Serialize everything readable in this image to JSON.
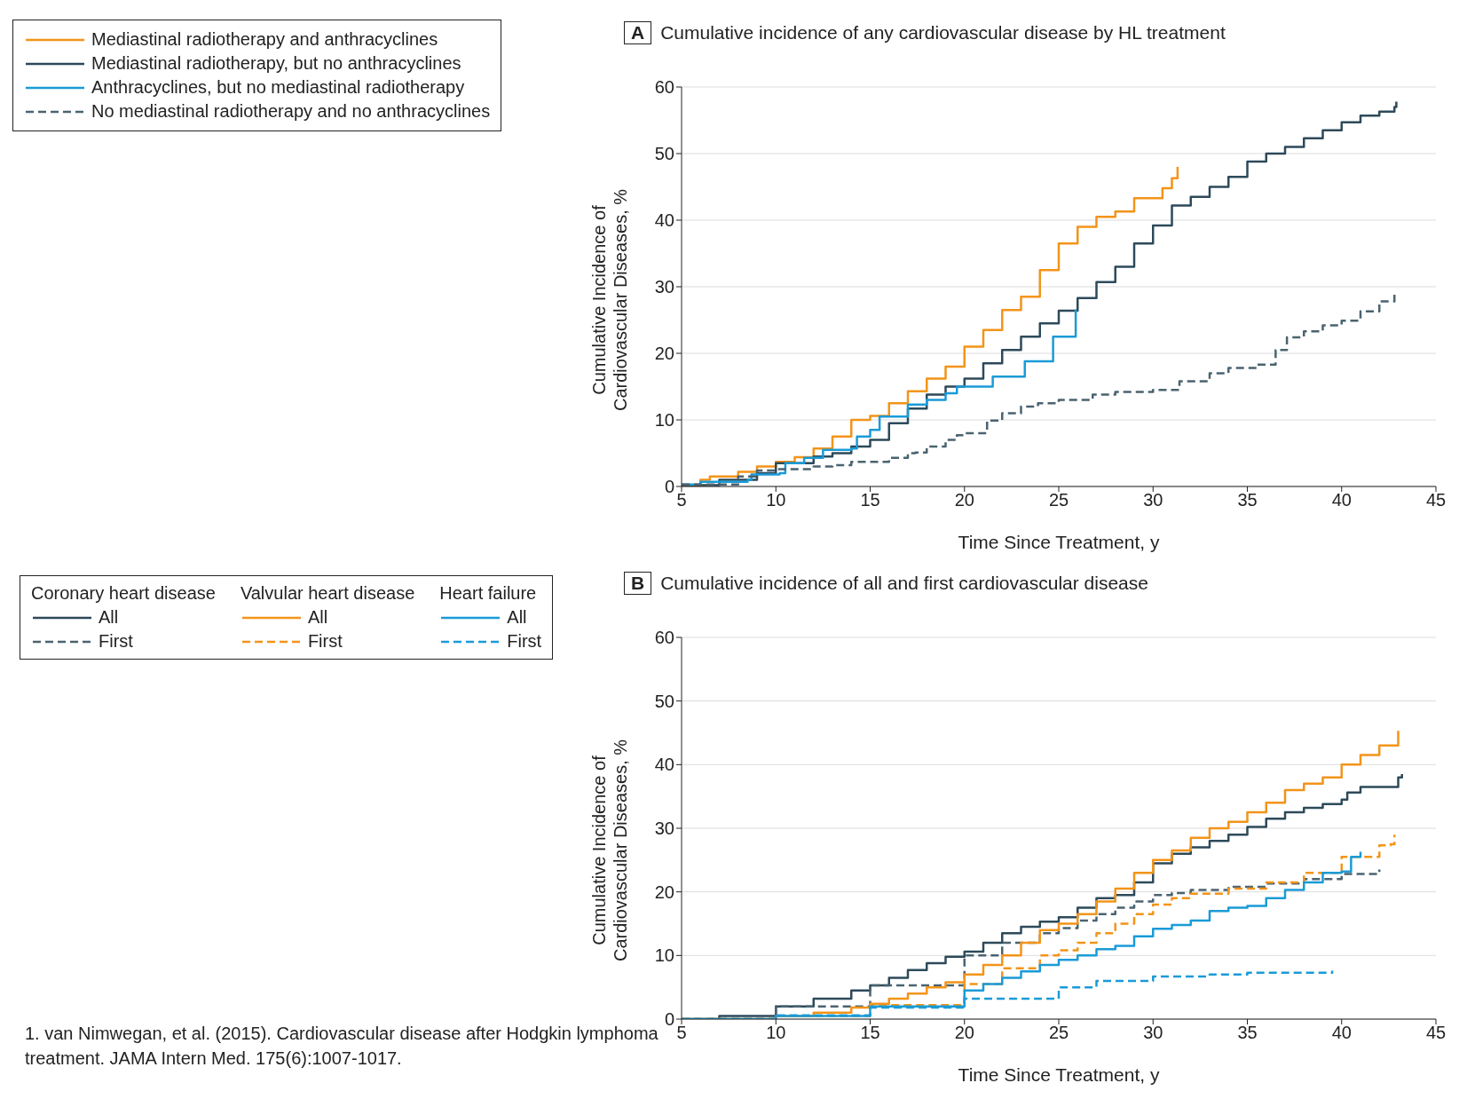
{
  "chart_data": [
    {
      "type": "step",
      "title": "Cumulative incidence of any cardiovascular disease by HL treatment",
      "xlabel": "Time Since Treatment, y",
      "ylabel": "Cumulative Incidence of Cardiovascular Diseases, %",
      "annotations": [
        "A"
      ],
      "xlim": [
        5,
        45
      ],
      "xticks": [
        5,
        10,
        15,
        20,
        25,
        30,
        35,
        40,
        45
      ],
      "ylim": [
        0,
        60
      ],
      "yticks": [
        0,
        10,
        20,
        30,
        40,
        50,
        60
      ],
      "grid": "y",
      "legend": "top left",
      "series": [
        {
          "name": "Mediastinal radiotherapy and anthracyclines",
          "color": "#f39419",
          "line_style": "solid",
          "x": [
            5,
            6,
            6.5,
            8,
            9,
            10,
            11,
            12,
            13,
            14,
            15,
            16,
            17,
            18,
            19,
            20,
            21,
            22,
            23,
            24,
            25,
            26,
            27,
            28,
            29,
            30,
            30.5,
            31,
            31.3
          ],
          "values": [
            0.2,
            1,
            1.5,
            2.2,
            3,
            3.7,
            4.4,
            5.7,
            7.5,
            10,
            10.6,
            12.5,
            14.3,
            16.2,
            18,
            21,
            23.5,
            26.5,
            28.5,
            32.5,
            36.5,
            39,
            40.5,
            41.3,
            43.3,
            43.3,
            44.8,
            46.3,
            48
          ]
        },
        {
          "name": "Mediastinal radiotherapy, but no anthracyclines",
          "color": "#2d4a5a",
          "line_style": "solid",
          "x": [
            5,
            7,
            9,
            10,
            12,
            13,
            14,
            15,
            16,
            17,
            18,
            19,
            20,
            21,
            22,
            23,
            24,
            25,
            26,
            27,
            28,
            29,
            30,
            31,
            32,
            33,
            34,
            35,
            36,
            37,
            38,
            39,
            40,
            41,
            42,
            42.8,
            42.9
          ],
          "values": [
            0.2,
            1,
            2,
            3.5,
            4.5,
            5,
            6,
            7,
            9.5,
            11.7,
            13.8,
            15,
            16.2,
            18.5,
            20.5,
            22.5,
            24.5,
            26.4,
            28.3,
            30.7,
            33,
            36.5,
            39.2,
            42.2,
            43.5,
            45,
            46.5,
            48.8,
            50,
            51,
            52.3,
            53.5,
            54.7,
            55.7,
            56.3,
            57,
            57.8
          ]
        },
        {
          "name": "Anthracyclines, but no mediastinal radiotherapy",
          "color": "#1a9bd7",
          "line_style": "solid",
          "x": [
            5,
            6,
            8.5,
            8.7,
            10.2,
            10.5,
            11.5,
            12.5,
            14,
            14.3,
            15,
            15.5,
            17,
            18,
            19,
            19.6,
            21.5,
            23.2,
            24.7,
            25.9
          ],
          "values": [
            0.3,
            0.7,
            1,
            1.8,
            2,
            3.5,
            4.3,
            5.5,
            5.7,
            7.5,
            8.5,
            10.5,
            12.3,
            13,
            14,
            15,
            16.5,
            18.8,
            22.5,
            26.6
          ]
        },
        {
          "name": "No mediastinal radiotherapy and no anthracyclines",
          "color": "#4a6370",
          "line_style": "dashed",
          "x": [
            5,
            8,
            9,
            10,
            12,
            13,
            14,
            16,
            17,
            17.4,
            18,
            19,
            19.6,
            20,
            21.2,
            22,
            23,
            23.9,
            25,
            26.8,
            28,
            30,
            31.4,
            33,
            34,
            35.5,
            36.5,
            37.1,
            38,
            39,
            40,
            41,
            42,
            42.8
          ],
          "values": [
            0.3,
            1.5,
            2.4,
            2.6,
            3,
            3.2,
            3.7,
            4.3,
            5,
            5.1,
            6,
            7,
            7.7,
            8,
            9.9,
            11,
            12,
            12.5,
            13,
            13.8,
            14.2,
            14.5,
            15.8,
            17,
            17.8,
            18.3,
            20.5,
            22.4,
            23.3,
            24.2,
            24.9,
            26.3,
            27.8,
            29.1
          ]
        }
      ]
    },
    {
      "type": "step",
      "title": "Cumulative incidence of all and first cardiovascular disease",
      "xlabel": "Time Since Treatment, y",
      "ylabel": "Cumulative Incidence of Cardiovascular Diseases, %",
      "annotations": [
        "B",
        "Coronary heart disease",
        "Valvular heart disease",
        "Heart failure",
        "1.    van Nimwegan, et al. (2015). Cardiovascular disease after Hodgkin lymphoma treatment. JAMA Intern Med. 175(6):1007-1017."
      ],
      "xlim": [
        5,
        45
      ],
      "xticks": [
        5,
        10,
        15,
        20,
        25,
        30,
        35,
        40,
        45
      ],
      "ylim": [
        0,
        60
      ],
      "yticks": [
        0,
        10,
        20,
        30,
        40,
        50,
        60
      ],
      "grid": "y",
      "legend": "top left",
      "series": [
        {
          "name": "All",
          "color": "#2d4a5a",
          "line_style": "solid",
          "x": [
            5,
            7,
            10,
            12,
            14,
            15,
            16,
            17,
            18,
            19,
            20,
            21,
            22,
            23,
            24,
            25,
            26,
            27,
            28,
            29,
            30,
            31,
            32,
            33,
            34,
            35,
            36,
            37,
            38,
            39,
            40,
            40.3,
            41,
            42,
            43,
            43.2
          ],
          "values": [
            0,
            0.5,
            2,
            3.2,
            4.5,
            5.3,
            6.5,
            7.7,
            8.8,
            9.8,
            10.6,
            12,
            13.5,
            14.5,
            15.3,
            16,
            17.5,
            19,
            19.5,
            21.5,
            24.5,
            26,
            27,
            28,
            29,
            30.2,
            31.5,
            32.5,
            33.2,
            33.8,
            34.5,
            35.6,
            36.5,
            36.5,
            38,
            38.5
          ]
        },
        {
          "name": "First",
          "color": "#4a6370",
          "line_style": "dashed",
          "x": [
            5,
            10,
            15,
            20,
            22,
            24,
            25,
            26,
            27,
            28,
            29,
            30,
            31,
            32,
            34,
            36,
            38,
            40,
            42
          ],
          "values": [
            0,
            2,
            5.3,
            10,
            12,
            13.5,
            14.3,
            15.5,
            16.5,
            17.5,
            18.5,
            19.5,
            19.8,
            20.3,
            20.8,
            21.3,
            22,
            22.8,
            23.5
          ]
        },
        {
          "name": "All",
          "color": "#f39419",
          "line_style": "solid",
          "x": [
            5,
            10,
            12,
            14,
            15,
            16,
            17,
            18,
            19,
            20,
            21,
            22,
            23,
            24,
            25,
            26,
            27,
            28,
            29,
            30,
            31,
            32,
            33,
            34,
            35,
            36,
            37,
            38,
            39,
            40,
            41,
            42,
            42.8,
            43
          ],
          "values": [
            0,
            0.5,
            1,
            1.8,
            2.4,
            3.2,
            4,
            5,
            5.8,
            7,
            8.5,
            10,
            12,
            14,
            15,
            16.5,
            18.5,
            20.5,
            23,
            25,
            26.5,
            28.5,
            30,
            31,
            32.5,
            34,
            36,
            37,
            38,
            40,
            41.5,
            43,
            43,
            45.3
          ]
        },
        {
          "name": "First",
          "color": "#f39419",
          "line_style": "dashed",
          "x": [
            5,
            10,
            15,
            20,
            22,
            24,
            25,
            26,
            27,
            28,
            29,
            30,
            31,
            32,
            34,
            36,
            38,
            40,
            42,
            42.6,
            42.8
          ],
          "values": [
            0,
            0.5,
            2.2,
            5.5,
            8,
            10,
            10.8,
            12,
            13.5,
            15,
            16.5,
            18,
            19,
            19.7,
            20.5,
            21.5,
            23,
            25.5,
            27.3,
            27.5,
            29
          ]
        },
        {
          "name": "All",
          "color": "#1a9bd7",
          "line_style": "solid",
          "x": [
            5,
            10,
            15,
            20,
            21,
            22,
            23,
            24,
            25,
            26,
            27,
            28,
            29,
            30,
            31,
            32,
            33,
            34,
            35,
            36,
            37,
            38,
            39,
            40,
            40.5,
            41
          ],
          "values": [
            0,
            0.5,
            2,
            4.5,
            5.5,
            6.5,
            7.5,
            8.5,
            9.3,
            10,
            11,
            11.5,
            13,
            14.2,
            14.8,
            15.5,
            17,
            17.5,
            17.8,
            19,
            20.3,
            21.5,
            23,
            23.2,
            25.5,
            26.3
          ]
        },
        {
          "name": "First",
          "color": "#1a9bd7",
          "line_style": "dashed",
          "x": [
            5,
            10,
            15,
            20,
            25,
            27,
            30,
            33,
            35,
            39.5
          ],
          "values": [
            0,
            0.6,
            1.8,
            3.2,
            5,
            6,
            6.7,
            7,
            7.3,
            7.6
          ]
        }
      ]
    }
  ]
}
